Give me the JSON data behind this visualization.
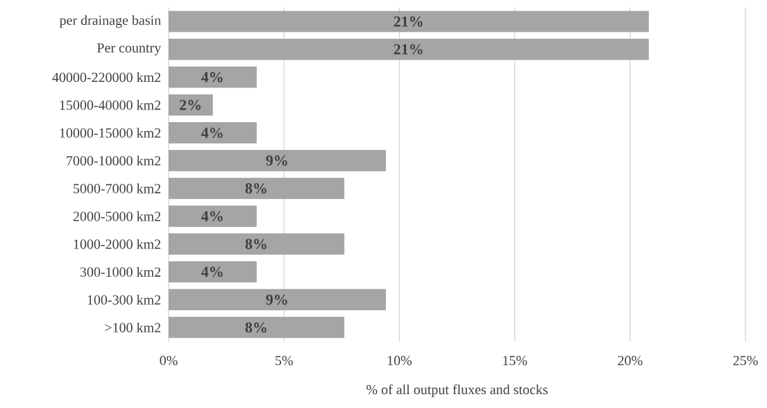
{
  "chart_data": {
    "type": "bar",
    "orientation": "horizontal",
    "xlabel": "% of all output fluxes and stocks",
    "categories": [
      "per drainage basin",
      "Per country",
      "40000-220000 km2",
      "15000-40000 km2",
      "10000-15000 km2",
      "7000-10000 km2",
      "5000-7000 km2",
      "2000-5000 km2",
      "1000-2000 km2",
      "300-1000 km2",
      "100-300 km2",
      ">100 km2"
    ],
    "values": [
      20.8,
      20.8,
      3.8,
      1.9,
      3.8,
      9.4,
      7.6,
      3.8,
      7.6,
      3.8,
      9.4,
      7.6
    ],
    "value_labels": [
      "21%",
      "21%",
      "4%",
      "2%",
      "4%",
      "9%",
      "8%",
      "4%",
      "8%",
      "4%",
      "9%",
      "8%"
    ],
    "color": "#a5a5a5",
    "xlim": [
      0,
      25
    ],
    "xticks": [
      {
        "value": 0,
        "label": "0%"
      },
      {
        "value": 5,
        "label": "5%"
      },
      {
        "value": 10,
        "label": "10%"
      },
      {
        "value": 15,
        "label": "15%"
      },
      {
        "value": 20,
        "label": "20%"
      },
      {
        "value": 25,
        "label": "25%"
      }
    ],
    "grid": "x"
  }
}
